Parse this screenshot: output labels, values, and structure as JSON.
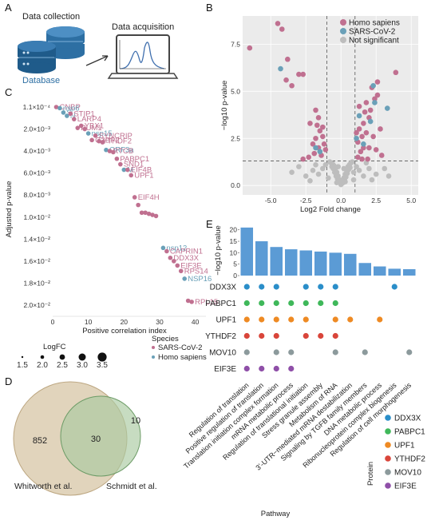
{
  "panels": {
    "A": {
      "label": "A",
      "data_collection": "Data collection",
      "data_acquisition": "Data acquisition",
      "database": "Database"
    },
    "B": {
      "label": "B"
    },
    "C": {
      "label": "C"
    },
    "D": {
      "label": "D"
    },
    "E": {
      "label": "E"
    }
  },
  "colors": {
    "homo": "#c07090",
    "sars": "#6aa0b8",
    "ns": "#bdbdbd",
    "DDX3X": "#2a8ec9",
    "PABPC1": "#3fb85a",
    "UPF1": "#ee8a23",
    "YTHDF2": "#d9453a",
    "MOV10": "#8c9a9c",
    "EIF3E": "#8f4fa8",
    "bar": "#5b9bd5",
    "venn_left": "#dcccb0",
    "venn_right": "#a9c9a0"
  },
  "chart_data": [
    {
      "id": "volcano",
      "type": "scatter",
      "title": "",
      "xlabel": "Log2 Fold change",
      "ylabel": "−log10 p-value",
      "xlim": [
        -7,
        5.5
      ],
      "ylim": [
        -0.5,
        9
      ],
      "xticks": [
        "-5.0",
        "-2.5",
        "0.0",
        "2.5",
        "5.0"
      ],
      "xtick_values": [
        -5,
        -2.5,
        0,
        2.5,
        5
      ],
      "yticks": [
        "0.0",
        "2.5",
        "5.0",
        "7.5"
      ],
      "ytick_values": [
        0,
        2.5,
        5,
        7.5
      ],
      "legend": [
        "Homo sapiens",
        "SARS-CoV-2",
        "Not  significant"
      ],
      "legend_position": "top-right",
      "vlines": [
        -1,
        1
      ],
      "hline": 1.3,
      "series": [
        {
          "name": "Homo sapiens",
          "points": [
            [
              -4.5,
              8.6
            ],
            [
              -4.2,
              8.3
            ],
            [
              -6.5,
              7.3
            ],
            [
              -3.8,
              6.7
            ],
            [
              -3.0,
              5.9
            ],
            [
              -2.7,
              5.9
            ],
            [
              -3.5,
              5.3
            ],
            [
              -3.9,
              5.6
            ],
            [
              -1.8,
              4.0
            ],
            [
              -1.6,
              3.6
            ],
            [
              -2.2,
              3.3
            ],
            [
              -1.5,
              2.9
            ],
            [
              -1.3,
              2.6
            ],
            [
              -1.8,
              2.5
            ],
            [
              -1.2,
              2.2
            ],
            [
              -1.6,
              2.0
            ],
            [
              -1.9,
              1.7
            ],
            [
              -2.3,
              1.5
            ],
            [
              -1.4,
              1.6
            ],
            [
              -1.1,
              1.9
            ],
            [
              -2.0,
              2.2
            ],
            [
              -1.3,
              3.1
            ],
            [
              -2.7,
              1.4
            ],
            [
              -1.7,
              3.2
            ],
            [
              1.2,
              1.5
            ],
            [
              1.4,
              1.8
            ],
            [
              1.6,
              2.0
            ],
            [
              1.2,
              2.3
            ],
            [
              1.5,
              2.6
            ],
            [
              1.8,
              2.8
            ],
            [
              1.3,
              3.0
            ],
            [
              1.6,
              3.3
            ],
            [
              2.0,
              3.6
            ],
            [
              1.7,
              3.9
            ],
            [
              1.3,
              4.2
            ],
            [
              2.1,
              4.0
            ],
            [
              1.8,
              4.4
            ],
            [
              2.4,
              4.6
            ],
            [
              2.6,
              4.8
            ],
            [
              2.2,
              5.2
            ],
            [
              3.9,
              6.0
            ],
            [
              2.6,
              5.5
            ],
            [
              2.3,
              2.6
            ],
            [
              2.5,
              1.9
            ],
            [
              1.9,
              1.4
            ],
            [
              1.1,
              2.8
            ],
            [
              1.5,
              1.4
            ],
            [
              2.8,
              3.0
            ],
            [
              2.9,
              1.6
            ],
            [
              2.0,
              2.0
            ]
          ]
        },
        {
          "name": "SARS-CoV-2",
          "points": [
            [
              -4.3,
              6.2
            ],
            [
              -1.8,
              2.0
            ],
            [
              -1.5,
              1.8
            ],
            [
              2.3,
              5.3
            ],
            [
              2.4,
              4.4
            ],
            [
              1.3,
              3.7
            ],
            [
              2.1,
              3.4
            ],
            [
              1.6,
              2.2
            ],
            [
              3.3,
              4.1
            ],
            [
              1.1,
              2.5
            ]
          ]
        },
        {
          "name": "Not  significant",
          "points": [
            [
              0,
              0.05
            ],
            [
              0.1,
              0.2
            ],
            [
              -0.1,
              0.3
            ],
            [
              0.2,
              0.4
            ],
            [
              -0.2,
              0.5
            ],
            [
              0.3,
              0.6
            ],
            [
              -0.3,
              0.7
            ],
            [
              0.4,
              0.8
            ],
            [
              -0.4,
              0.9
            ],
            [
              0.5,
              1.0
            ],
            [
              -0.5,
              1.05
            ],
            [
              0.6,
              1.1
            ],
            [
              -0.6,
              1.15
            ],
            [
              0.7,
              1.2
            ],
            [
              -0.7,
              1.2
            ],
            [
              0.8,
              1.25
            ],
            [
              -0.8,
              1.25
            ],
            [
              0.05,
              0.1
            ],
            [
              0.15,
              0.15
            ],
            [
              -0.15,
              0.2
            ],
            [
              0.25,
              0.3
            ],
            [
              -0.25,
              0.35
            ],
            [
              0.35,
              0.45
            ],
            [
              -0.35,
              0.5
            ],
            [
              0.45,
              0.65
            ],
            [
              -0.45,
              0.7
            ],
            [
              0.55,
              0.85
            ],
            [
              -0.55,
              0.9
            ],
            [
              0.65,
              0.95
            ],
            [
              -0.65,
              1.0
            ],
            [
              1.3,
              0.8
            ],
            [
              -1.3,
              0.9
            ],
            [
              1.6,
              0.5
            ],
            [
              -1.6,
              0.6
            ],
            [
              2.0,
              0.9
            ],
            [
              -2.0,
              0.8
            ],
            [
              2.5,
              0.6
            ],
            [
              -2.5,
              0.5
            ],
            [
              3.1,
              0.9
            ],
            [
              -3.0,
              1.0
            ],
            [
              -3.5,
              0.7
            ],
            [
              3.4,
              0.5
            ],
            [
              0.9,
              0.3
            ],
            [
              -0.9,
              0.4
            ],
            [
              1.1,
              1.0
            ],
            [
              -1.1,
              1.1
            ],
            [
              1.8,
              1.2
            ],
            [
              -1.8,
              1.1
            ],
            [
              0.2,
              0.9
            ],
            [
              -0.2,
              1.0
            ],
            [
              0.3,
              0.2
            ],
            [
              -0.3,
              0.15
            ],
            [
              2.2,
              0.3
            ],
            [
              -2.2,
              0.25
            ],
            [
              0.9,
              0.7
            ]
          ]
        }
      ]
    },
    {
      "id": "correlation",
      "type": "scatter",
      "title": "",
      "xlabel": "Positive correlation index",
      "ylabel": "Adjusted p-value",
      "xlim": [
        0,
        43
      ],
      "yticks": [
        "1.1×10⁻⁴",
        "2.0×10⁻³",
        "4.0×10⁻³",
        "6.0×10⁻³",
        "8.0×10⁻³",
        "1.0×10⁻²",
        "1.4×10⁻²",
        "1.6×10⁻²",
        "1.8×10⁻²",
        "2.0×10⁻²"
      ],
      "ytick_levels": [
        0,
        1,
        2,
        3,
        4,
        5,
        6,
        7,
        8,
        9
      ],
      "xticks": [
        "0",
        "10",
        "20",
        "30",
        "40"
      ],
      "xtick_values": [
        0,
        10,
        20,
        30,
        40
      ],
      "legend_size_title": "LogFC",
      "legend_size_values": [
        "1.5",
        "2.0",
        "2.5",
        "3.0",
        "3.5"
      ],
      "legend_species_title": "Species",
      "legend_species": [
        "SARS-CoV-2",
        "Homo sapiens"
      ],
      "points": [
        {
          "x": 1,
          "y": 0.0,
          "s": "h",
          "label": "CNBP"
        },
        {
          "x": 2,
          "y": 0.05,
          "s": "s",
          "label": "nsp6"
        },
        {
          "x": 3,
          "y": 0.25,
          "s": "s",
          "label": "S"
        },
        {
          "x": 4,
          "y": 0.4,
          "s": "s",
          "label": "N"
        },
        {
          "x": 5,
          "y": 0.3,
          "s": "h",
          "label": "STIP1"
        },
        {
          "x": 6,
          "y": 0.55,
          "s": "h",
          "label": "LARP4"
        },
        {
          "x": 7,
          "y": 0.95,
          "s": "h",
          "label": "PUM1"
        },
        {
          "x": 8,
          "y": 0.85,
          "s": "h",
          "label": "YBX1"
        },
        {
          "x": 9,
          "y": 1.0,
          "s": "h",
          "label": ""
        },
        {
          "x": 10,
          "y": 1.2,
          "s": "s",
          "label": "nsp15"
        },
        {
          "x": 11,
          "y": 1.5,
          "s": "h",
          "label": "G3BP2"
        },
        {
          "x": 12,
          "y": 1.3,
          "s": "h",
          "label": "SYNCRIP"
        },
        {
          "x": 13,
          "y": 1.55,
          "s": "h",
          "label": "YTHDF2"
        },
        {
          "x": 14,
          "y": 1.6,
          "s": "h",
          "label": ""
        },
        {
          "x": 15,
          "y": 1.95,
          "s": "s",
          "label": "ORF3a"
        },
        {
          "x": 16,
          "y": 2.0,
          "s": "h",
          "label": "RTCB"
        },
        {
          "x": 17,
          "y": 2.05,
          "s": "h",
          "label": ""
        },
        {
          "x": 18,
          "y": 2.35,
          "s": "h",
          "label": "PABPC1"
        },
        {
          "x": 19,
          "y": 2.6,
          "s": "h",
          "label": "SND1"
        },
        {
          "x": 20,
          "y": 2.85,
          "s": "s",
          "label": "M"
        },
        {
          "x": 21,
          "y": 2.85,
          "s": "h",
          "label": "EIF4B"
        },
        {
          "x": 22,
          "y": 3.1,
          "s": "h",
          "label": "UPF1"
        },
        {
          "x": 23,
          "y": 4.1,
          "s": "h",
          "label": "EIF4H"
        },
        {
          "x": 24,
          "y": 4.45,
          "s": "h",
          "label": ""
        },
        {
          "x": 25,
          "y": 4.8,
          "s": "h",
          "label": ""
        },
        {
          "x": 26,
          "y": 4.8,
          "s": "h",
          "label": ""
        },
        {
          "x": 27,
          "y": 4.85,
          "s": "h",
          "label": ""
        },
        {
          "x": 28,
          "y": 4.9,
          "s": "h",
          "label": ""
        },
        {
          "x": 29,
          "y": 4.95,
          "s": "h",
          "label": ""
        },
        {
          "x": 31,
          "y": 6.4,
          "s": "s",
          "label": "nsp12"
        },
        {
          "x": 32,
          "y": 6.55,
          "s": "h",
          "label": "CAPRIN1"
        },
        {
          "x": 33,
          "y": 6.85,
          "s": "h",
          "label": "DDX3X"
        },
        {
          "x": 34,
          "y": 7.0,
          "s": "h",
          "label": ""
        },
        {
          "x": 35,
          "y": 7.2,
          "s": "h",
          "label": "EIF3E"
        },
        {
          "x": 36,
          "y": 7.45,
          "s": "h",
          "label": "RPS14"
        },
        {
          "x": 37,
          "y": 7.8,
          "s": "s",
          "label": "NSP16"
        },
        {
          "x": 38,
          "y": 8.8,
          "s": "h",
          "label": ""
        },
        {
          "x": 39,
          "y": 8.85,
          "s": "h",
          "label": "RPL15"
        }
      ]
    },
    {
      "id": "venn",
      "type": "table",
      "sets": [
        {
          "name": "Whitworth et al.",
          "only": "852"
        },
        {
          "name": "Schmidt et al.",
          "only": "10"
        }
      ],
      "overlap": "30"
    },
    {
      "id": "enrichment",
      "type": "bar",
      "title": "",
      "xlabel": "Pathway",
      "ylabel": "−log10 p-value",
      "ylim": [
        0,
        22
      ],
      "yticks": [
        "0",
        "5",
        "10",
        "15",
        "20"
      ],
      "ytick_values": [
        0,
        5,
        10,
        15,
        20
      ],
      "categories": [
        "Regulation of translation",
        "Positive regulation of translation",
        "Translation initiation complex formation",
        "mRNA metabolic process",
        "Regulation of translational initiation",
        "Stress granule assembly",
        "Metabolism of RNA",
        "3’-UTR−mediated mRNA destabilization",
        "Signaling by TGFB family members",
        "DNA metabolic process",
        "Ribonucleoprotein complex biogenesis",
        "Regulation of cell morphogenesis"
      ],
      "values": [
        21,
        15,
        12.5,
        11.5,
        11,
        10.5,
        10,
        9.5,
        5.5,
        4.0,
        3.0,
        2.8
      ],
      "proteins": [
        "DDX3X",
        "PABPC1",
        "UPF1",
        "YTHDF2",
        "MOV10",
        "EIF3E"
      ],
      "legend_title": "Protein",
      "membership": {
        "DDX3X": [
          0,
          1,
          2,
          4,
          5,
          6,
          10
        ],
        "PABPC1": [
          0,
          1,
          2,
          3,
          4,
          5,
          6
        ],
        "UPF1": [
          0,
          1,
          2,
          3,
          4,
          6,
          7,
          9
        ],
        "YTHDF2": [
          0,
          1,
          2,
          4,
          5,
          6
        ],
        "MOV10": [
          0,
          2,
          3,
          6,
          8,
          11
        ],
        "EIF3E": [
          0,
          1,
          2,
          3
        ]
      }
    }
  ]
}
